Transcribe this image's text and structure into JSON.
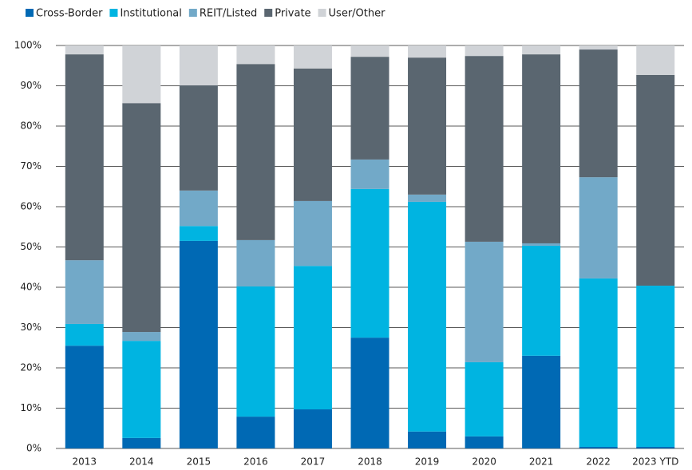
{
  "chart_data": {
    "type": "stacked_bar",
    "categories": [
      "2013",
      "2014",
      "2015",
      "2016",
      "2017",
      "2018",
      "2019",
      "2020",
      "2021",
      "2022",
      "2023 YTD"
    ],
    "series": [
      {
        "name": "Cross-Border",
        "color": "#0069b4",
        "values": [
          25.5,
          2.6,
          51.5,
          7.9,
          9.7,
          27.5,
          4.2,
          3.0,
          23.0,
          0.4,
          0.4
        ]
      },
      {
        "name": "Institutional",
        "color": "#00b4e1",
        "values": [
          5.4,
          24.1,
          3.7,
          32.3,
          35.6,
          36.9,
          57.0,
          18.4,
          27.3,
          41.8,
          40.0
        ]
      },
      {
        "name": "REIT/Listed",
        "color": "#72a9c8",
        "values": [
          15.8,
          2.2,
          8.8,
          11.5,
          16.1,
          7.3,
          1.8,
          29.9,
          0.6,
          25.1,
          0.0
        ]
      },
      {
        "name": "Private",
        "color": "#5a6670",
        "values": [
          51.1,
          56.8,
          26.1,
          43.7,
          32.9,
          25.5,
          34.0,
          46.1,
          46.9,
          31.7,
          52.3
        ]
      },
      {
        "name": "User/Other",
        "color": "#d0d3d7",
        "values": [
          2.2,
          14.3,
          9.9,
          4.6,
          5.7,
          2.8,
          3.0,
          2.6,
          2.2,
          1.0,
          7.3
        ]
      }
    ],
    "ylim": [
      0,
      100
    ],
    "yticks": [
      {
        "value": 0,
        "label": "0%"
      },
      {
        "value": 10,
        "label": "10%"
      },
      {
        "value": 20,
        "label": "20%"
      },
      {
        "value": 30,
        "label": "30%"
      },
      {
        "value": 40,
        "label": "40%"
      },
      {
        "value": 50,
        "label": "50%"
      },
      {
        "value": 60,
        "label": "60%"
      },
      {
        "value": 70,
        "label": "70%"
      },
      {
        "value": 80,
        "label": "80%"
      },
      {
        "value": 90,
        "label": "90%"
      },
      {
        "value": 100,
        "label": "100%"
      }
    ],
    "grid": true,
    "legend": "top"
  }
}
